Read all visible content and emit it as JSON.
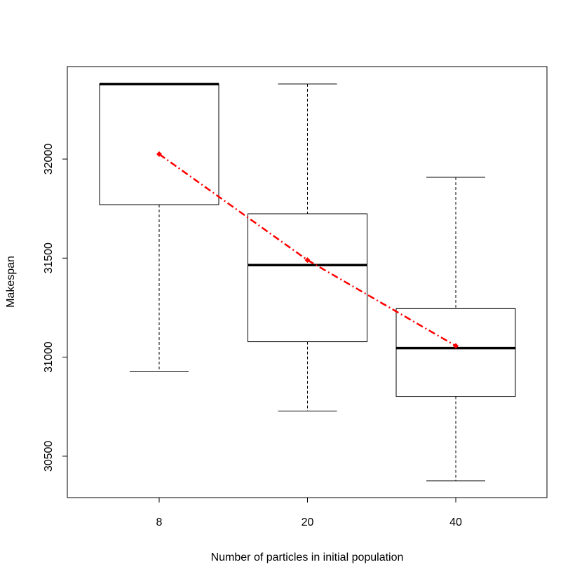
{
  "chart_data": {
    "type": "box",
    "xlabel": "Number of particles in initial population",
    "ylabel": "Makespan",
    "categories": [
      "8",
      "20",
      "40"
    ],
    "min": [
      30926,
      30728,
      30376
    ],
    "q1": [
      31770,
      31078,
      30802
    ],
    "median": [
      32379,
      31465,
      31046
    ],
    "q3": [
      32379,
      31724,
      31245
    ],
    "max": [
      32379,
      32379,
      31908
    ],
    "mean": [
      32025,
      31490,
      31057
    ],
    "mean_color": "#ff0000",
    "ylim": [
      30291,
      32467
    ],
    "yticks": [
      30500,
      31000,
      31500,
      32000
    ]
  }
}
